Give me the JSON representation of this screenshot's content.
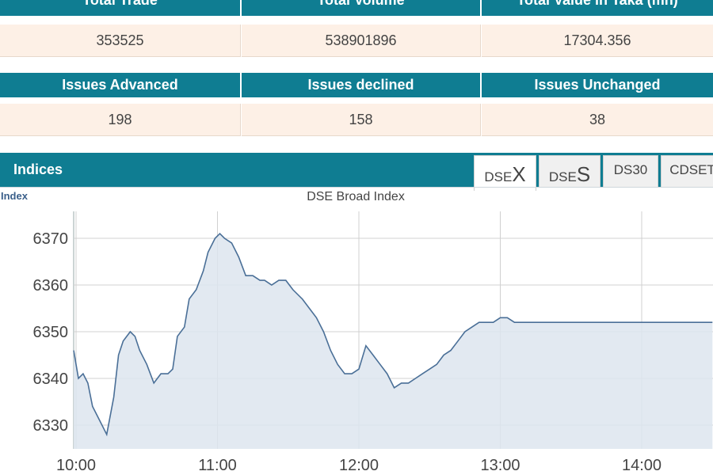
{
  "market_summary": {
    "headers": [
      "Total Trade",
      "Total Volume",
      "Total Value in Taka (mn)"
    ],
    "values": [
      "353525",
      "538901896",
      "17304.356"
    ]
  },
  "issues_summary": {
    "headers": [
      "Issues Advanced",
      "Issues declined",
      "Issues Unchanged"
    ],
    "values": [
      "198",
      "158",
      "38"
    ]
  },
  "indices": {
    "title": "Indices",
    "tabs": [
      {
        "prefix": "DSE",
        "suffix": "X",
        "active": true
      },
      {
        "prefix": "DSE",
        "suffix": "S",
        "active": false
      },
      {
        "prefix": "DS30",
        "suffix": "",
        "active": false
      },
      {
        "prefix": "CDSET",
        "suffix": "",
        "active": false
      }
    ]
  },
  "colors": {
    "header_bg": "#0f7d92",
    "value_bg": "#fdf0e6",
    "line": "#4a6f97",
    "area": "#dde5ef"
  },
  "chart_data": {
    "type": "area",
    "title": "DSE Broad Index",
    "ylabel": "Index",
    "xlabel": "",
    "x_ticks": [
      "10:00",
      "11:00",
      "12:00",
      "13:00",
      "14:00"
    ],
    "y_ticks": [
      6330,
      6340,
      6350,
      6360,
      6370
    ],
    "ylim": [
      6325,
      6375
    ],
    "xlim": [
      "10:00",
      "14:30"
    ],
    "grid": true,
    "series": [
      {
        "name": "",
        "x": [
          "09:59",
          "10:01",
          "10:03",
          "10:05",
          "10:07",
          "10:10",
          "10:13",
          "10:16",
          "10:18",
          "10:20",
          "10:23",
          "10:25",
          "10:27",
          "10:30",
          "10:33",
          "10:36",
          "10:39",
          "10:41",
          "10:43",
          "10:46",
          "10:48",
          "10:51",
          "10:54",
          "10:56",
          "10:59",
          "11:01",
          "11:03",
          "11:06",
          "11:09",
          "11:12",
          "11:15",
          "11:18",
          "11:20",
          "11:23",
          "11:26",
          "11:29",
          "11:32",
          "11:36",
          "11:39",
          "11:42",
          "11:45",
          "11:48",
          "11:51",
          "11:54",
          "11:57",
          "12:00",
          "12:03",
          "12:06",
          "12:09",
          "12:12",
          "12:15",
          "12:18",
          "12:21",
          "12:24",
          "12:27",
          "12:30",
          "12:33",
          "12:36",
          "12:39",
          "12:42",
          "12:45",
          "12:48",
          "12:51",
          "12:54",
          "12:57",
          "13:00",
          "13:03",
          "13:06",
          "13:09",
          "13:12",
          "13:15",
          "13:18",
          "13:21",
          "13:24",
          "13:27",
          "13:30",
          "13:33",
          "13:36",
          "13:39",
          "13:42",
          "13:45",
          "13:48",
          "13:51",
          "13:54",
          "13:57",
          "14:00",
          "14:03",
          "14:06",
          "14:09",
          "14:12",
          "14:15",
          "14:18",
          "14:21",
          "14:24",
          "14:30"
        ],
        "values": [
          6346,
          6340,
          6341,
          6339,
          6334,
          6331,
          6328,
          6336,
          6345,
          6348,
          6350,
          6349,
          6346,
          6343,
          6339,
          6341,
          6341,
          6342,
          6349,
          6351,
          6357,
          6359,
          6363,
          6367,
          6370,
          6371,
          6370,
          6369,
          6366,
          6362,
          6362,
          6361,
          6361,
          6360,
          6361,
          6361,
          6359,
          6357,
          6355,
          6353,
          6350,
          6346,
          6343,
          6341,
          6341,
          6342,
          6347,
          6345,
          6343,
          6341,
          6338,
          6339,
          6339,
          6340,
          6341,
          6342,
          6343,
          6345,
          6346,
          6348,
          6350,
          6351,
          6352,
          6352,
          6352,
          6353,
          6353,
          6352,
          6352,
          6352,
          6352,
          6352,
          6352,
          6352,
          6352,
          6352,
          6352,
          6352,
          6352,
          6352,
          6352,
          6352,
          6352,
          6352,
          6352,
          6352,
          6352,
          6352,
          6352,
          6352,
          6352,
          6352,
          6352,
          6352,
          6352
        ]
      }
    ]
  }
}
